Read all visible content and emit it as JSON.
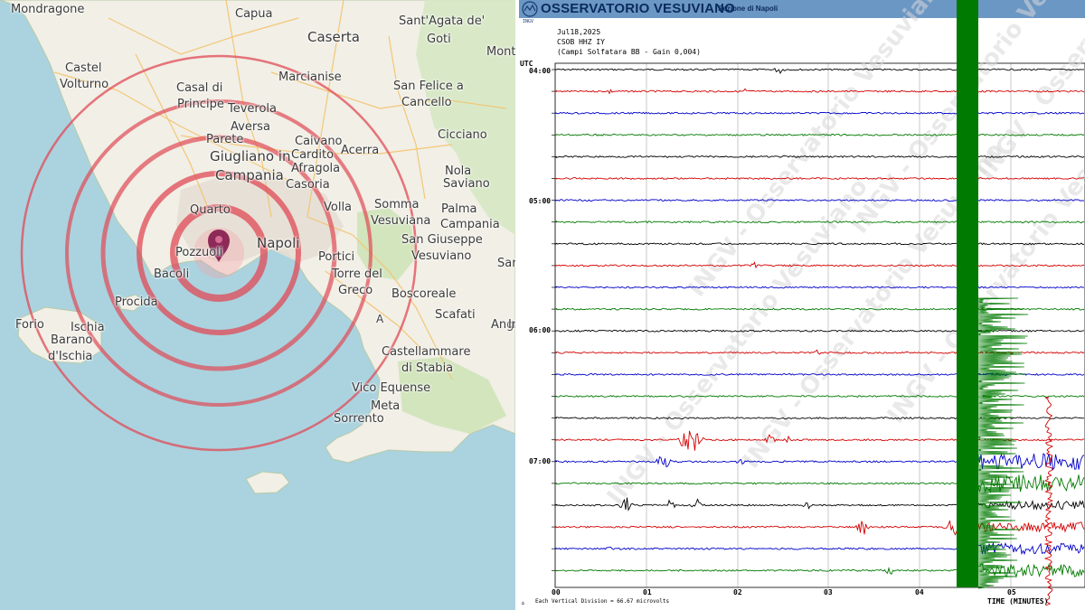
{
  "map": {
    "labels": [
      {
        "text": "Mondragone",
        "size": "md"
      },
      {
        "text": "Capua",
        "size": "md"
      },
      {
        "text": "Caserta",
        "size": "lg"
      },
      {
        "text": "Sant'Agata de'",
        "size": "md"
      },
      {
        "text": "Goti",
        "size": "md"
      },
      {
        "text": "Mont",
        "size": "md"
      },
      {
        "text": "Castel",
        "size": "md"
      },
      {
        "text": "Volturno",
        "size": "md"
      },
      {
        "text": "Marcianise",
        "size": "md"
      },
      {
        "text": "Casal di",
        "size": "md"
      },
      {
        "text": "Principe",
        "size": "md"
      },
      {
        "text": "San Felice a",
        "size": "md"
      },
      {
        "text": "Cancello",
        "size": "md"
      },
      {
        "text": "Teverola",
        "size": "md"
      },
      {
        "text": "Aversa",
        "size": "md"
      },
      {
        "text": "Parete",
        "size": "md"
      },
      {
        "text": "Caivano",
        "size": "md"
      },
      {
        "text": "Cicciano",
        "size": "md"
      },
      {
        "text": "Giugliano in",
        "size": "lg"
      },
      {
        "text": "Cardito",
        "size": "md"
      },
      {
        "text": "Acerra",
        "size": "md"
      },
      {
        "text": "Campania",
        "size": "lg"
      },
      {
        "text": "Afragola",
        "size": "md"
      },
      {
        "text": "Nola",
        "size": "md"
      },
      {
        "text": "Casoria",
        "size": "md"
      },
      {
        "text": "Saviano",
        "size": "md"
      },
      {
        "text": "Quarto",
        "size": "md"
      },
      {
        "text": "Somma",
        "size": "md"
      },
      {
        "text": "Volla",
        "size": "md"
      },
      {
        "text": "Palma",
        "size": "md"
      },
      {
        "text": "Vesuviana",
        "size": "md"
      },
      {
        "text": "Campania",
        "size": "md"
      },
      {
        "text": "Napoli",
        "size": "lg"
      },
      {
        "text": "San Giuseppe",
        "size": "md"
      },
      {
        "text": "Pozzuoli",
        "size": "md"
      },
      {
        "text": "Portici",
        "size": "md"
      },
      {
        "text": "Vesuviano",
        "size": "md"
      },
      {
        "text": "Sar",
        "size": "md"
      },
      {
        "text": "Bacoli",
        "size": "md"
      },
      {
        "text": "Torre del",
        "size": "md"
      },
      {
        "text": "Greco",
        "size": "md"
      },
      {
        "text": "Boscoreale",
        "size": "md"
      },
      {
        "text": "Procida",
        "size": "md"
      },
      {
        "text": "Scafati",
        "size": "md"
      },
      {
        "text": "Forio",
        "size": "md"
      },
      {
        "text": "Ischia",
        "size": "md"
      },
      {
        "text": "Angri",
        "size": "md"
      },
      {
        "text": "In",
        "size": "md"
      },
      {
        "text": "Barano",
        "size": "md"
      },
      {
        "text": "d'Ischia",
        "size": "md"
      },
      {
        "text": "Castellammare",
        "size": "md"
      },
      {
        "text": "di Stabia",
        "size": "md"
      },
      {
        "text": "Vico Equense",
        "size": "md"
      },
      {
        "text": "Meta",
        "size": "md"
      },
      {
        "text": "Sorrento",
        "size": "md"
      },
      {
        "text": "A",
        "size": "sm"
      }
    ],
    "epicenter_icon": "map-pin-icon",
    "ring_color": "#e04a55",
    "ring_fill": "#f5a0a6",
    "pin_color": "#8e2a58"
  },
  "seismogram": {
    "logo_text": "INGV",
    "title": "OSSERVATORIO VESUVIANO",
    "section": "Sezione di Napoli",
    "date": "Jul18,2025",
    "station": "CSOB HHZ IY",
    "gain": "(Campi Solfatara BB  - Gain 0,004)",
    "utc_label": "UTC",
    "hour_labels": [
      "04:00",
      "05:00",
      "06:00",
      "07:00"
    ],
    "minute_labels": [
      "00",
      "01",
      "02",
      "03",
      "04",
      "05"
    ],
    "vertical_division_note": "Each Vertical Division =    66.67 microvolts",
    "time_axis_label": "TIME (MINUTES)",
    "arrow_mark": "▵",
    "watermark_text": "INGV - Osservatorio Vesuviano",
    "trace_colors": [
      "#000000",
      "#d40000",
      "#0000c8",
      "#007a00"
    ],
    "header_color": "#6b97c4",
    "quake_color": "#007a00"
  }
}
